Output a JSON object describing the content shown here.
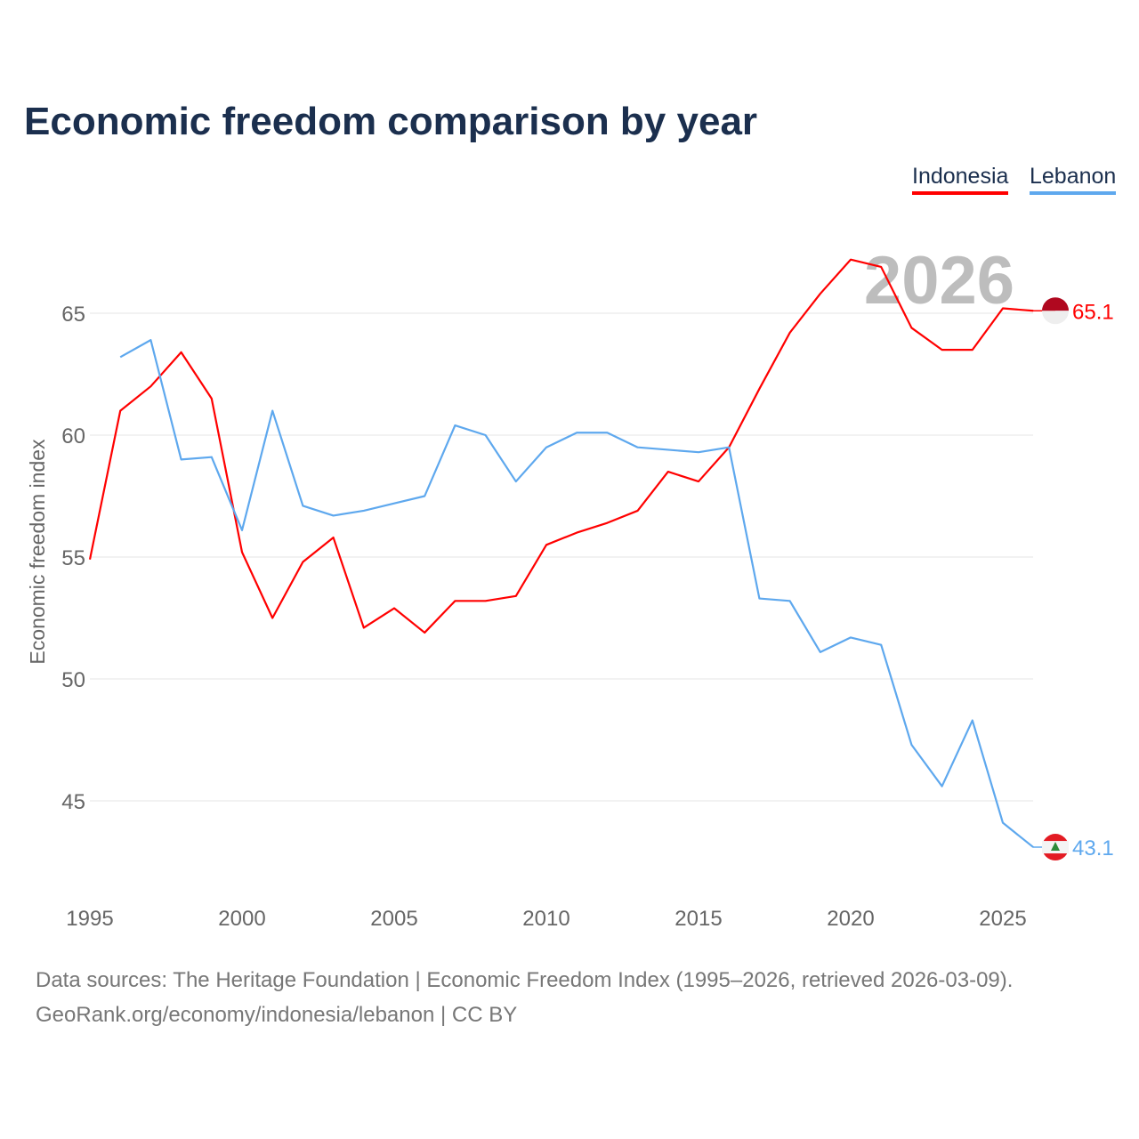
{
  "chart_data": {
    "type": "line",
    "title": "Economic freedom comparison by year",
    "xlabel": "",
    "ylabel": "Economic freedom index",
    "year_watermark": "2026",
    "xlim": [
      1995,
      2026
    ],
    "ylim": [
      41.5,
      68
    ],
    "x_ticks": [
      1995,
      2000,
      2005,
      2010,
      2015,
      2020,
      2025
    ],
    "y_ticks": [
      45,
      50,
      55,
      60,
      65
    ],
    "grid": true,
    "legend_placement": "top-right",
    "series": [
      {
        "name": "Indonesia",
        "color": "#ff0000",
        "end_label": "65.1",
        "x": [
          1995,
          1996,
          1997,
          1998,
          1999,
          2000,
          2001,
          2002,
          2003,
          2004,
          2005,
          2006,
          2007,
          2008,
          2009,
          2010,
          2011,
          2012,
          2013,
          2014,
          2015,
          2016,
          2017,
          2018,
          2019,
          2020,
          2021,
          2022,
          2023,
          2024,
          2025,
          2026
        ],
        "values": [
          54.9,
          61.0,
          62.0,
          63.4,
          61.5,
          55.2,
          52.5,
          54.8,
          55.8,
          52.1,
          52.9,
          51.9,
          53.2,
          53.2,
          53.4,
          55.5,
          56.0,
          56.4,
          56.9,
          58.5,
          58.1,
          59.5,
          61.9,
          64.2,
          65.8,
          67.2,
          66.9,
          64.4,
          63.5,
          63.5,
          65.2,
          65.1
        ]
      },
      {
        "name": "Lebanon",
        "color": "#5ea8ee",
        "end_label": "43.1",
        "x": [
          1996,
          1997,
          1998,
          1999,
          2000,
          2001,
          2002,
          2003,
          2004,
          2005,
          2006,
          2007,
          2008,
          2009,
          2010,
          2011,
          2012,
          2013,
          2014,
          2015,
          2016,
          2017,
          2018,
          2019,
          2020,
          2021,
          2022,
          2023,
          2024,
          2025,
          2026
        ],
        "values": [
          63.2,
          63.9,
          59.0,
          59.1,
          56.1,
          61.0,
          57.1,
          56.7,
          56.9,
          57.2,
          57.5,
          60.4,
          60.0,
          58.1,
          59.5,
          60.1,
          60.1,
          59.5,
          59.4,
          59.3,
          59.5,
          53.3,
          53.2,
          51.1,
          51.7,
          51.4,
          47.3,
          45.6,
          48.3,
          44.1,
          43.1
        ]
      }
    ]
  },
  "footer": {
    "line1": "Data sources: The Heritage Foundation | Economic Freedom Index (1995–2026, retrieved 2026-03-09).",
    "line2": "GeoRank.org/economy/indonesia/lebanon | CC BY"
  }
}
